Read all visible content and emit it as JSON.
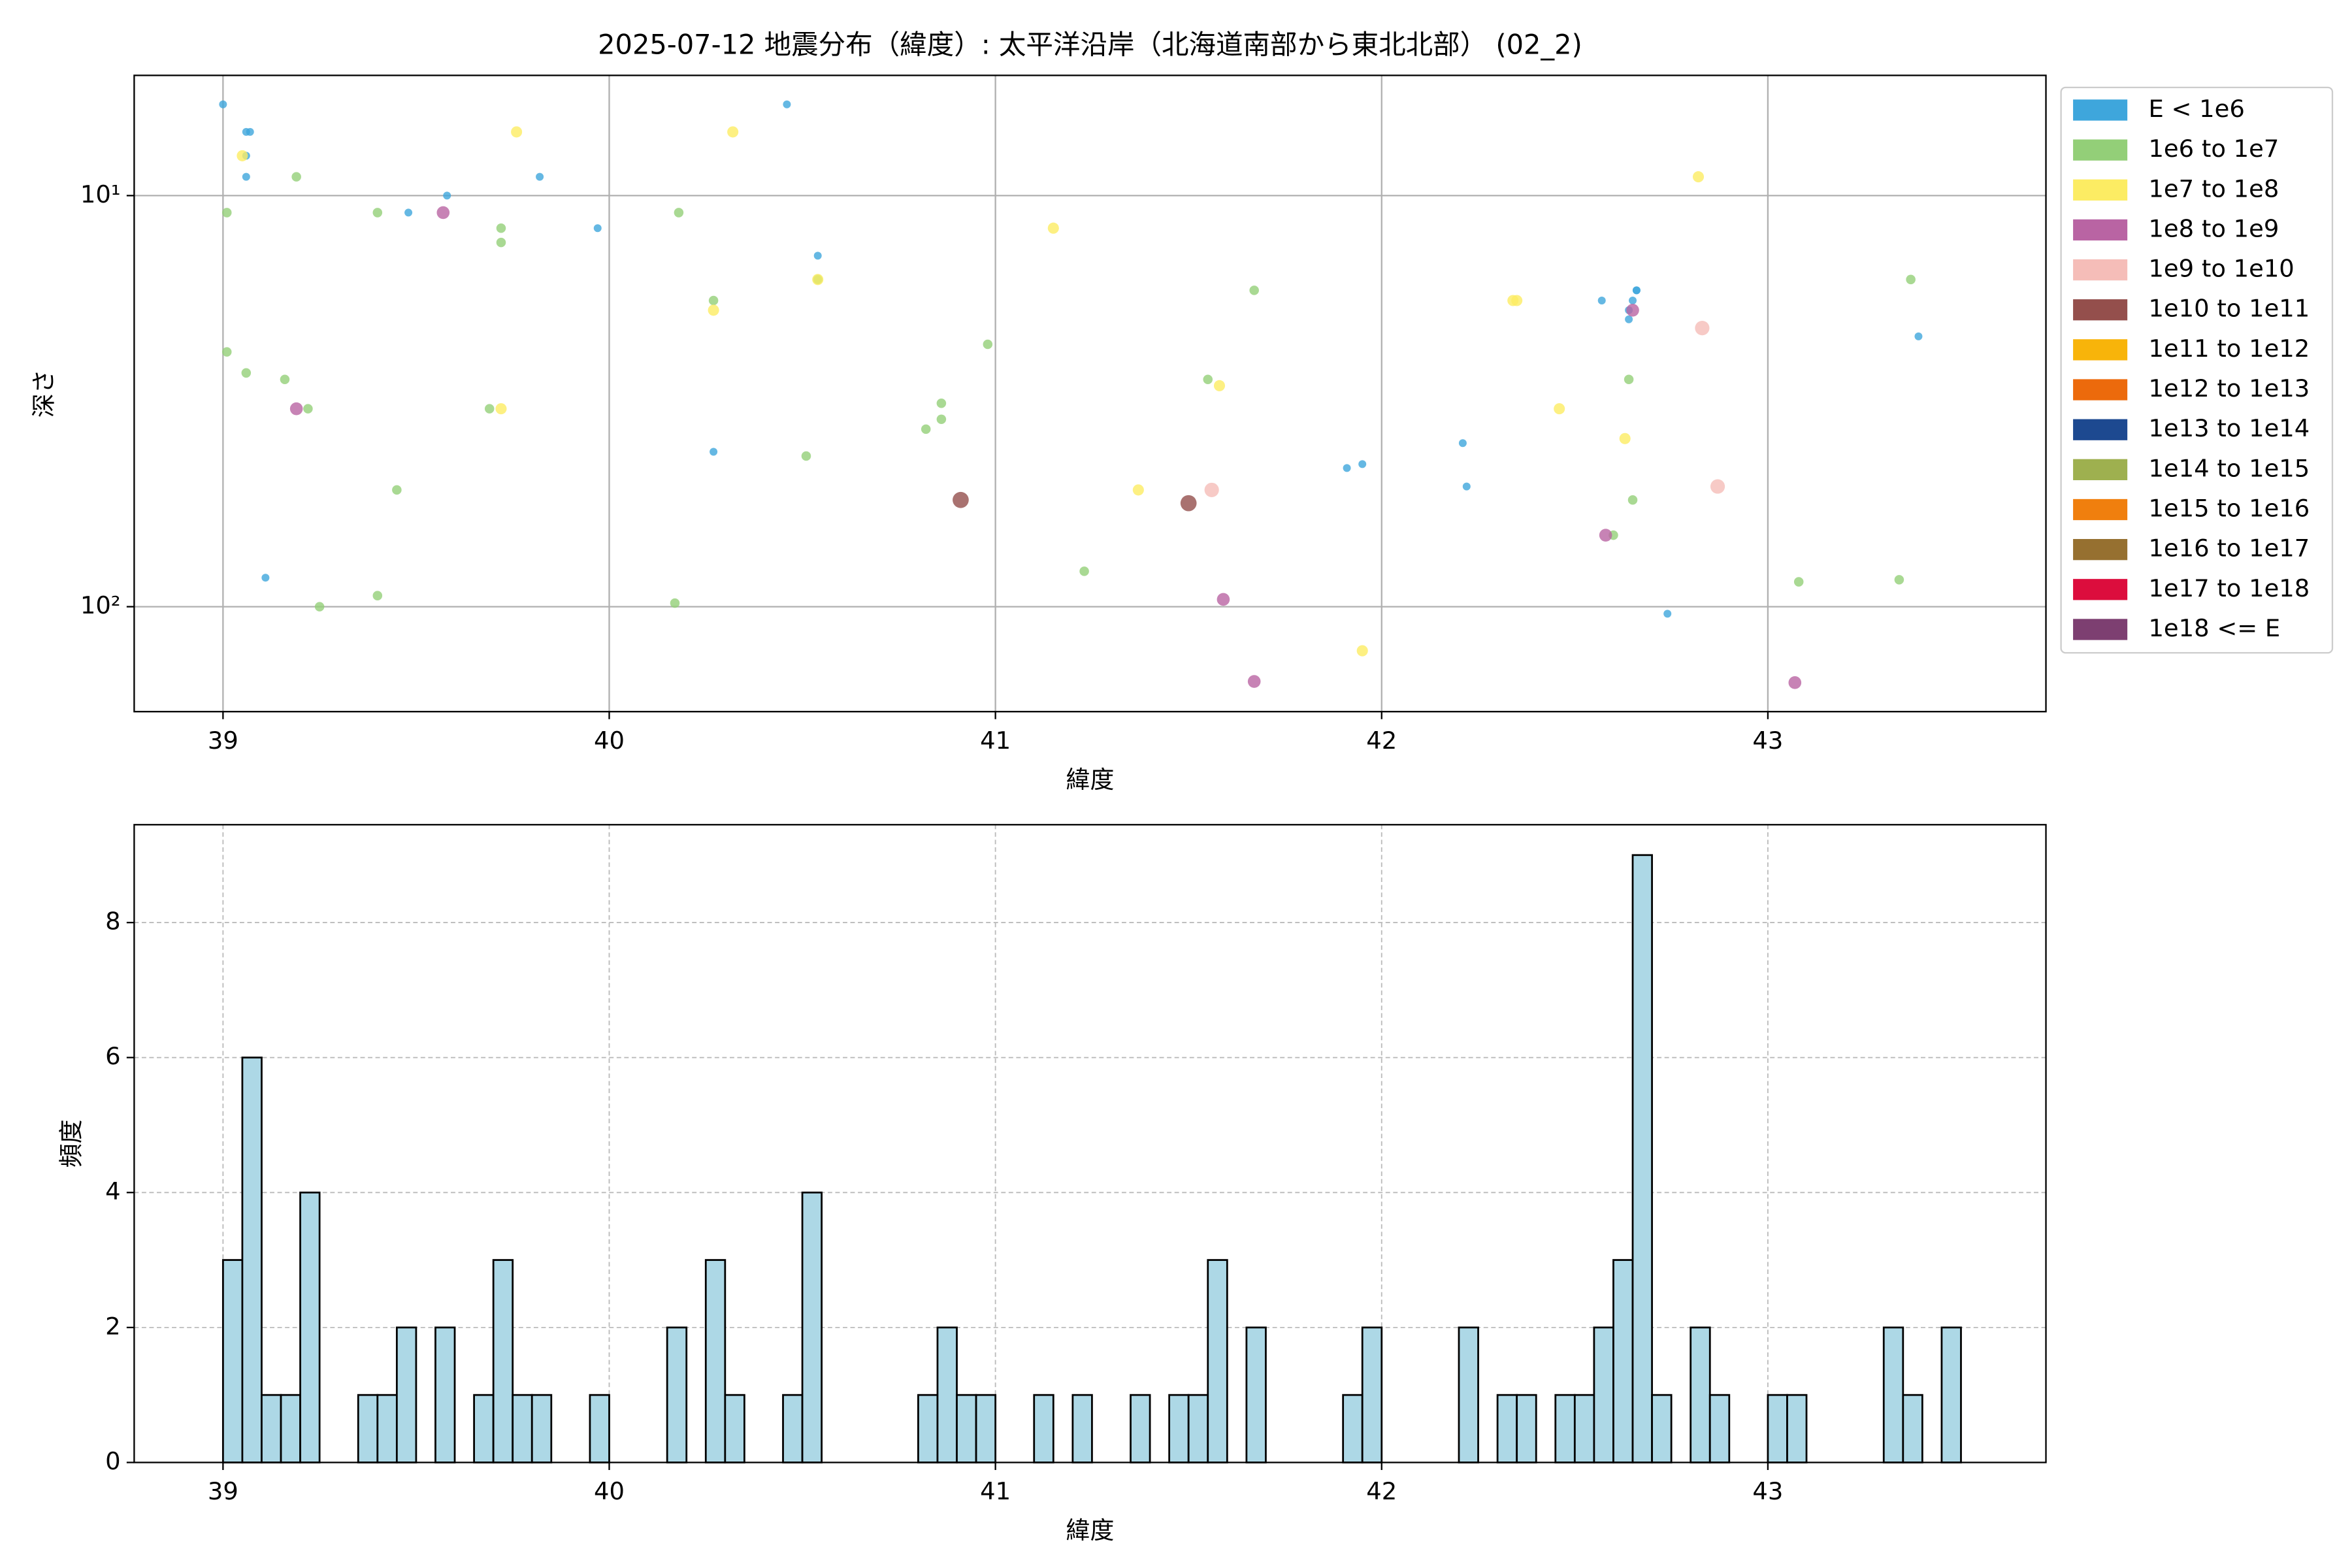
{
  "chart_data": [
    {
      "type": "scatter",
      "title": "2025-07-12 地震分布（緯度）: 太平洋沿岸（北海道南部から東北北部） (02_2)",
      "xlabel": "緯度",
      "ylabel": "深さ",
      "xlim": [
        38.77,
        43.72
      ],
      "ylim": [
        5.1,
        180
      ],
      "ylog": true,
      "yinverted": true,
      "xticks": [
        39,
        40,
        41,
        42,
        43
      ],
      "yticks": [
        {
          "value": 10,
          "label": "10¹"
        },
        {
          "value": 100,
          "label": "10²"
        }
      ],
      "grid": true,
      "legend": "outside right",
      "series": [
        {
          "name": "E < 1e6",
          "color": "#3ea6dc",
          "x": [
            39.0,
            39.06,
            39.07,
            39.06,
            39.06,
            39.48,
            39.58,
            39.82,
            39.97,
            40.46,
            40.54,
            40.54,
            40.27,
            39.11,
            41.91,
            41.95,
            42.21,
            42.22,
            42.57,
            42.66,
            42.66,
            42.65,
            42.64,
            42.64,
            42.74,
            43.39
          ],
          "values": [
            6,
            7,
            7,
            8,
            9,
            11,
            10,
            9,
            12,
            6,
            14,
            16,
            42,
            85,
            46,
            45,
            40,
            51,
            18,
            17,
            17,
            18,
            19,
            20,
            104,
            22
          ]
        },
        {
          "name": "1e6 to 1e7",
          "color": "#93cf78",
          "x": [
            39.01,
            39.19,
            39.4,
            39.72,
            39.72,
            40.18,
            40.27,
            39.01,
            39.06,
            39.16,
            39.22,
            39.69,
            39.45,
            40.51,
            40.54,
            40.98,
            40.86,
            40.86,
            40.82,
            41.67,
            41.55,
            41.23,
            39.25,
            39.4,
            40.17,
            42.6,
            42.64,
            42.65,
            43.08,
            43.34,
            43.37
          ],
          "values": [
            11,
            9,
            11,
            12,
            13,
            11,
            18,
            24,
            27,
            28,
            33,
            33,
            52,
            43,
            16,
            23,
            32,
            35,
            37,
            17,
            28,
            82,
            100,
            94,
            98,
            67,
            28,
            55,
            87,
            86,
            16
          ]
        },
        {
          "name": "1e7 to 1e8",
          "color": "#fcec63",
          "x": [
            39.05,
            39.76,
            40.32,
            40.27,
            40.54,
            39.72,
            41.15,
            41.37,
            41.58,
            42.34,
            42.35,
            42.46,
            42.63,
            42.82,
            41.95
          ],
          "values": [
            8,
            7,
            7,
            19,
            16,
            33,
            12,
            52,
            29,
            18,
            18,
            33,
            39,
            9,
            128
          ]
        },
        {
          "name": "1e8 to 1e9",
          "color": "#b964a3",
          "x": [
            39.57,
            39.19,
            42.65,
            42.58,
            41.59,
            41.67,
            43.07
          ],
          "values": [
            11,
            33,
            19,
            67,
            96,
            152,
            153
          ]
        },
        {
          "name": "1e9 to 1e10",
          "color": "#f5bdb8",
          "x": [
            42.83,
            41.56,
            42.87
          ],
          "values": [
            21,
            52,
            51
          ]
        },
        {
          "name": "1e10 to 1e11",
          "color": "#944f4c",
          "x": [
            40.91,
            41.5
          ],
          "values": [
            55,
            56
          ]
        },
        {
          "name": "1e11 to 1e12",
          "color": "#f8b40a",
          "x": [],
          "values": []
        },
        {
          "name": "1e12 to 1e13",
          "color": "#ec6a0c",
          "x": [],
          "values": []
        },
        {
          "name": "1e13 to 1e14",
          "color": "#1d4990",
          "x": [],
          "values": []
        },
        {
          "name": "1e14 to 1e15",
          "color": "#9eb04f",
          "x": [],
          "values": []
        },
        {
          "name": "1e15 to 1e16",
          "color": "#f07f0e",
          "x": [],
          "values": []
        },
        {
          "name": "1e16 to 1e17",
          "color": "#967030",
          "x": [],
          "values": []
        },
        {
          "name": "1e17 to 1e18",
          "color": "#dc0d3d",
          "x": [],
          "values": []
        },
        {
          "name": "1e18 <= E",
          "color": "#7d3f71",
          "x": [],
          "values": []
        }
      ]
    },
    {
      "type": "histogram",
      "xlabel": "緯度",
      "ylabel": "頻度",
      "xlim": [
        38.77,
        43.72
      ],
      "ylim": [
        0,
        9.45
      ],
      "xticks": [
        39,
        40,
        41,
        42,
        43
      ],
      "yticks": [
        0,
        2,
        4,
        6,
        8
      ],
      "grid": "dashed",
      "color": "#add8e6",
      "edgecolor": "#000000",
      "bins": [
        39,
        39.05,
        39.1,
        39.15,
        39.2,
        39.25,
        39.3,
        39.35,
        39.4,
        39.45,
        39.5,
        39.55,
        39.6,
        39.65,
        39.7,
        39.75,
        39.8,
        39.85,
        39.9,
        39.95,
        40,
        40.05,
        40.1,
        40.15,
        40.2,
        40.25,
        40.3,
        40.35,
        40.4,
        40.45,
        40.5,
        40.55,
        40.6,
        40.65,
        40.7,
        40.75,
        40.8,
        40.85,
        40.9,
        40.95,
        41,
        41.05,
        41.1,
        41.15,
        41.2,
        41.25,
        41.3,
        41.35,
        41.4,
        41.45,
        41.5,
        41.55,
        41.6,
        41.65,
        41.7,
        41.75,
        41.8,
        41.85,
        41.9,
        41.95,
        42,
        42.05,
        42.1,
        42.15,
        42.2,
        42.25,
        42.3,
        42.35,
        42.4,
        42.45,
        42.5,
        42.55,
        42.6,
        42.65,
        42.7,
        42.75,
        42.8,
        42.85,
        42.9,
        42.95,
        43,
        43.05,
        43.1,
        43.15,
        43.2,
        43.25,
        43.3,
        43.35,
        43.4,
        43.45,
        43.5
      ],
      "values": [
        3,
        6,
        1,
        1,
        4,
        0,
        0,
        1,
        1,
        2,
        0,
        2,
        0,
        1,
        3,
        1,
        1,
        0,
        0,
        1,
        0,
        0,
        0,
        2,
        0,
        3,
        1,
        0,
        0,
        1,
        4,
        0,
        0,
        0,
        0,
        0,
        1,
        2,
        1,
        1,
        0,
        0,
        1,
        0,
        1,
        0,
        0,
        1,
        0,
        1,
        1,
        3,
        0,
        2,
        0,
        0,
        0,
        0,
        1,
        2,
        0,
        0,
        0,
        0,
        2,
        0,
        1,
        1,
        0,
        1,
        1,
        2,
        3,
        9,
        1,
        0,
        2,
        1,
        0,
        0,
        1,
        1,
        0,
        0,
        0,
        0,
        2,
        1,
        0,
        2
      ]
    }
  ]
}
